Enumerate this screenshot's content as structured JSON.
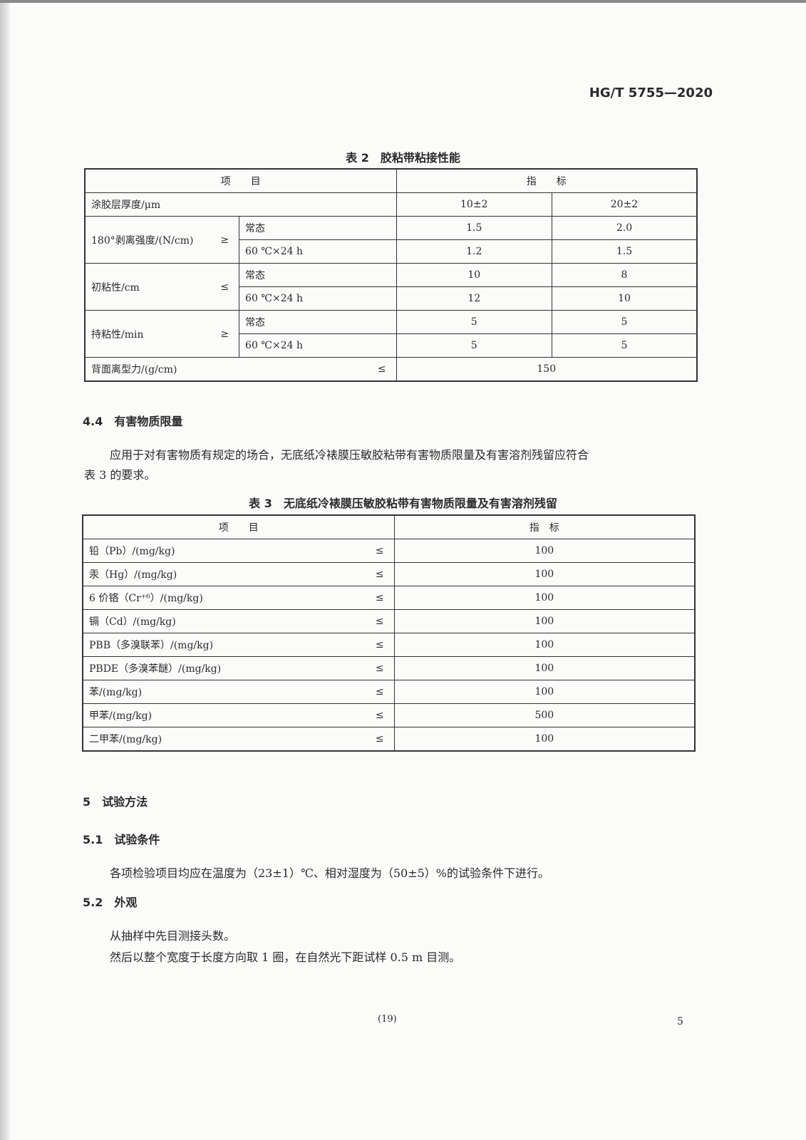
{
  "header": {
    "standard_no": "HG/T 5755—2020"
  },
  "table2": {
    "caption": "表 2　胶粘带粘接性能",
    "head_item": "项　　目",
    "head_index": "指　　标",
    "thickness_label": "涂胶层厚度/μm",
    "thickness_values": [
      "10±2",
      "20±2"
    ],
    "groups": [
      {
        "label": "180°剥离强度/(N/cm)",
        "op": "≥",
        "rows": [
          {
            "cond": "常态",
            "values": [
              "1.5",
              "2.0"
            ]
          },
          {
            "cond": "60 ℃×24 h",
            "values": [
              "1.2",
              "1.5"
            ]
          }
        ]
      },
      {
        "label": "初粘性/cm",
        "op": "≤",
        "rows": [
          {
            "cond": "常态",
            "values": [
              "10",
              "8"
            ]
          },
          {
            "cond": "60 ℃×24 h",
            "values": [
              "12",
              "10"
            ]
          }
        ]
      },
      {
        "label": "持粘性/min",
        "op": "≥",
        "rows": [
          {
            "cond": "常态",
            "values": [
              "5",
              "5"
            ]
          },
          {
            "cond": "60 ℃×24 h",
            "values": [
              "5",
              "5"
            ]
          }
        ]
      }
    ],
    "release_label": "背面离型力/(g/cm)",
    "release_op": "≤",
    "release_value": "150"
  },
  "section44": {
    "heading": "4.4　有害物质限量",
    "para1": "应用于对有害物质有规定的场合，无底纸冷裱膜压敏胶粘带有害物质限量及有害溶剂残留应符合",
    "para2": "表 3 的要求。"
  },
  "table3": {
    "caption": "表 3　无底纸冷裱膜压敏胶粘带有害物质限量及有害溶剂残留",
    "head_item": "项　　目",
    "head_index": "指　标",
    "rows": [
      {
        "item": "铅（Pb）/(mg/kg)",
        "op": "≤",
        "value": "100"
      },
      {
        "item": "汞（Hg）/(mg/kg)",
        "op": "≤",
        "value": "100"
      },
      {
        "item": "6 价铬（Cr⁺⁶）/(mg/kg)",
        "op": "≤",
        "value": "100"
      },
      {
        "item": "镉（Cd）/(mg/kg)",
        "op": "≤",
        "value": "100"
      },
      {
        "item": "PBB（多溴联苯）/(mg/kg)",
        "op": "≤",
        "value": "100"
      },
      {
        "item": "PBDE（多溴苯醚）/(mg/kg)",
        "op": "≤",
        "value": "100"
      },
      {
        "item": "苯/(mg/kg)",
        "op": "≤",
        "value": "100"
      },
      {
        "item": "甲苯/(mg/kg)",
        "op": "≤",
        "value": "500"
      },
      {
        "item": "二甲苯/(mg/kg)",
        "op": "≤",
        "value": "100"
      }
    ]
  },
  "section5": {
    "heading": "5　试验方法"
  },
  "section51": {
    "heading": "5.1　试验条件",
    "para": "各项检验项目均应在温度为（23±1）℃、相对湿度为（50±5）%的试验条件下进行。"
  },
  "section52": {
    "heading": "5.2　外观",
    "para1": "从抽样中先目测接头数。",
    "para2": "然后以整个宽度于长度方向取 1 圈，在自然光下距试样 0.5 m 目测。"
  },
  "footer": {
    "inner_page": "(19)",
    "page_no": "5"
  }
}
